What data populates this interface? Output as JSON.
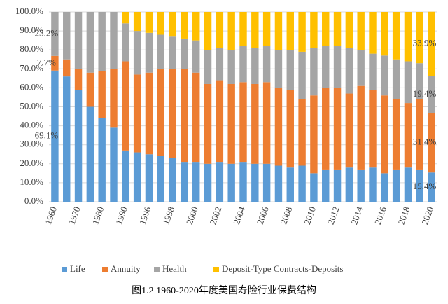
{
  "chart_data": {
    "type": "stacked_bar_percent",
    "title": "图1.2 1960-2020年度美国寿险行业保费结构",
    "categories": [
      "1960",
      null,
      "1970",
      null,
      "1980",
      null,
      "1990",
      null,
      "1996",
      null,
      "1998",
      null,
      "2000",
      null,
      "2002",
      null,
      "2004",
      null,
      "2006",
      null,
      "2008",
      null,
      "2010",
      null,
      "2012",
      null,
      "2014",
      null,
      "2016",
      null,
      "2018",
      null,
      "2020"
    ],
    "ylim": [
      0,
      100
    ],
    "yticks": [
      {
        "value": 0,
        "label": "0.0%"
      },
      {
        "value": 10,
        "label": "10.0%"
      },
      {
        "value": 20,
        "label": "20.0%"
      },
      {
        "value": 30,
        "label": "30.0%"
      },
      {
        "value": 40,
        "label": "40.0%"
      },
      {
        "value": 50,
        "label": "50.0%"
      },
      {
        "value": 60,
        "label": "60.0%"
      },
      {
        "value": 70,
        "label": "70.0%"
      },
      {
        "value": 80,
        "label": "80.0%"
      },
      {
        "value": 90,
        "label": "90.0%"
      },
      {
        "value": 100,
        "label": "100.0%"
      }
    ],
    "grid": true,
    "legend": "bottom",
    "series": [
      {
        "name": "Life",
        "color": "#5b9bd5",
        "values": [
          69.1,
          66,
          59,
          50,
          44,
          39,
          27,
          26,
          25,
          24,
          23,
          21,
          21,
          20,
          21,
          20,
          21,
          20,
          20,
          19,
          18,
          19,
          15,
          17,
          17,
          18,
          17,
          18,
          15,
          17,
          18,
          17,
          15.4
        ],
        "value_labels": [
          "69.1%",
          null,
          null,
          null,
          null,
          null,
          null,
          null,
          null,
          null,
          null,
          null,
          null,
          null,
          null,
          null,
          null,
          null,
          null,
          null,
          null,
          null,
          null,
          null,
          null,
          null,
          null,
          null,
          null,
          null,
          null,
          null,
          "15.4%"
        ]
      },
      {
        "name": "Annuity",
        "color": "#ed7d31",
        "values": [
          7.7,
          9,
          11,
          18,
          25,
          31,
          47,
          41,
          43,
          46,
          47,
          49,
          47,
          42,
          43,
          42,
          42,
          42,
          43,
          41,
          41,
          35,
          41,
          43,
          43,
          39,
          44,
          41,
          41,
          37,
          34,
          37,
          31.4
        ],
        "value_labels": [
          "7.7%",
          null,
          null,
          null,
          null,
          null,
          null,
          null,
          null,
          null,
          null,
          null,
          null,
          null,
          null,
          null,
          null,
          null,
          null,
          null,
          null,
          null,
          null,
          null,
          null,
          null,
          null,
          null,
          null,
          null,
          null,
          null,
          "31.4%"
        ]
      },
      {
        "name": "Health",
        "color": "#a5a5a5",
        "values": [
          23.2,
          25,
          30,
          32,
          31,
          30,
          20,
          23,
          21,
          18,
          17,
          16,
          17,
          18,
          17,
          18,
          19,
          19,
          19,
          20,
          21,
          25,
          25,
          22,
          22,
          24,
          19,
          19,
          21,
          21,
          22,
          19,
          19.4
        ],
        "value_labels": [
          "23.2%",
          null,
          null,
          null,
          null,
          null,
          null,
          null,
          null,
          null,
          null,
          null,
          null,
          null,
          null,
          null,
          null,
          null,
          null,
          null,
          null,
          null,
          null,
          null,
          null,
          null,
          null,
          null,
          null,
          null,
          null,
          null,
          "19.4%"
        ]
      },
      {
        "name": "Deposit-Type Contracts-Deposits",
        "color": "#ffc000",
        "values": [
          0,
          0,
          0,
          0,
          0,
          0,
          6,
          10,
          11,
          12,
          13,
          14,
          15,
          20,
          19,
          20,
          18,
          19,
          18,
          20,
          20,
          21,
          19,
          18,
          18,
          19,
          20,
          22,
          23,
          25,
          26,
          27,
          33.9
        ],
        "value_labels": [
          null,
          null,
          null,
          null,
          null,
          null,
          null,
          null,
          null,
          null,
          null,
          null,
          null,
          null,
          null,
          null,
          null,
          null,
          null,
          null,
          null,
          null,
          null,
          null,
          null,
          null,
          null,
          null,
          null,
          null,
          null,
          null,
          "33.9%"
        ]
      }
    ]
  }
}
